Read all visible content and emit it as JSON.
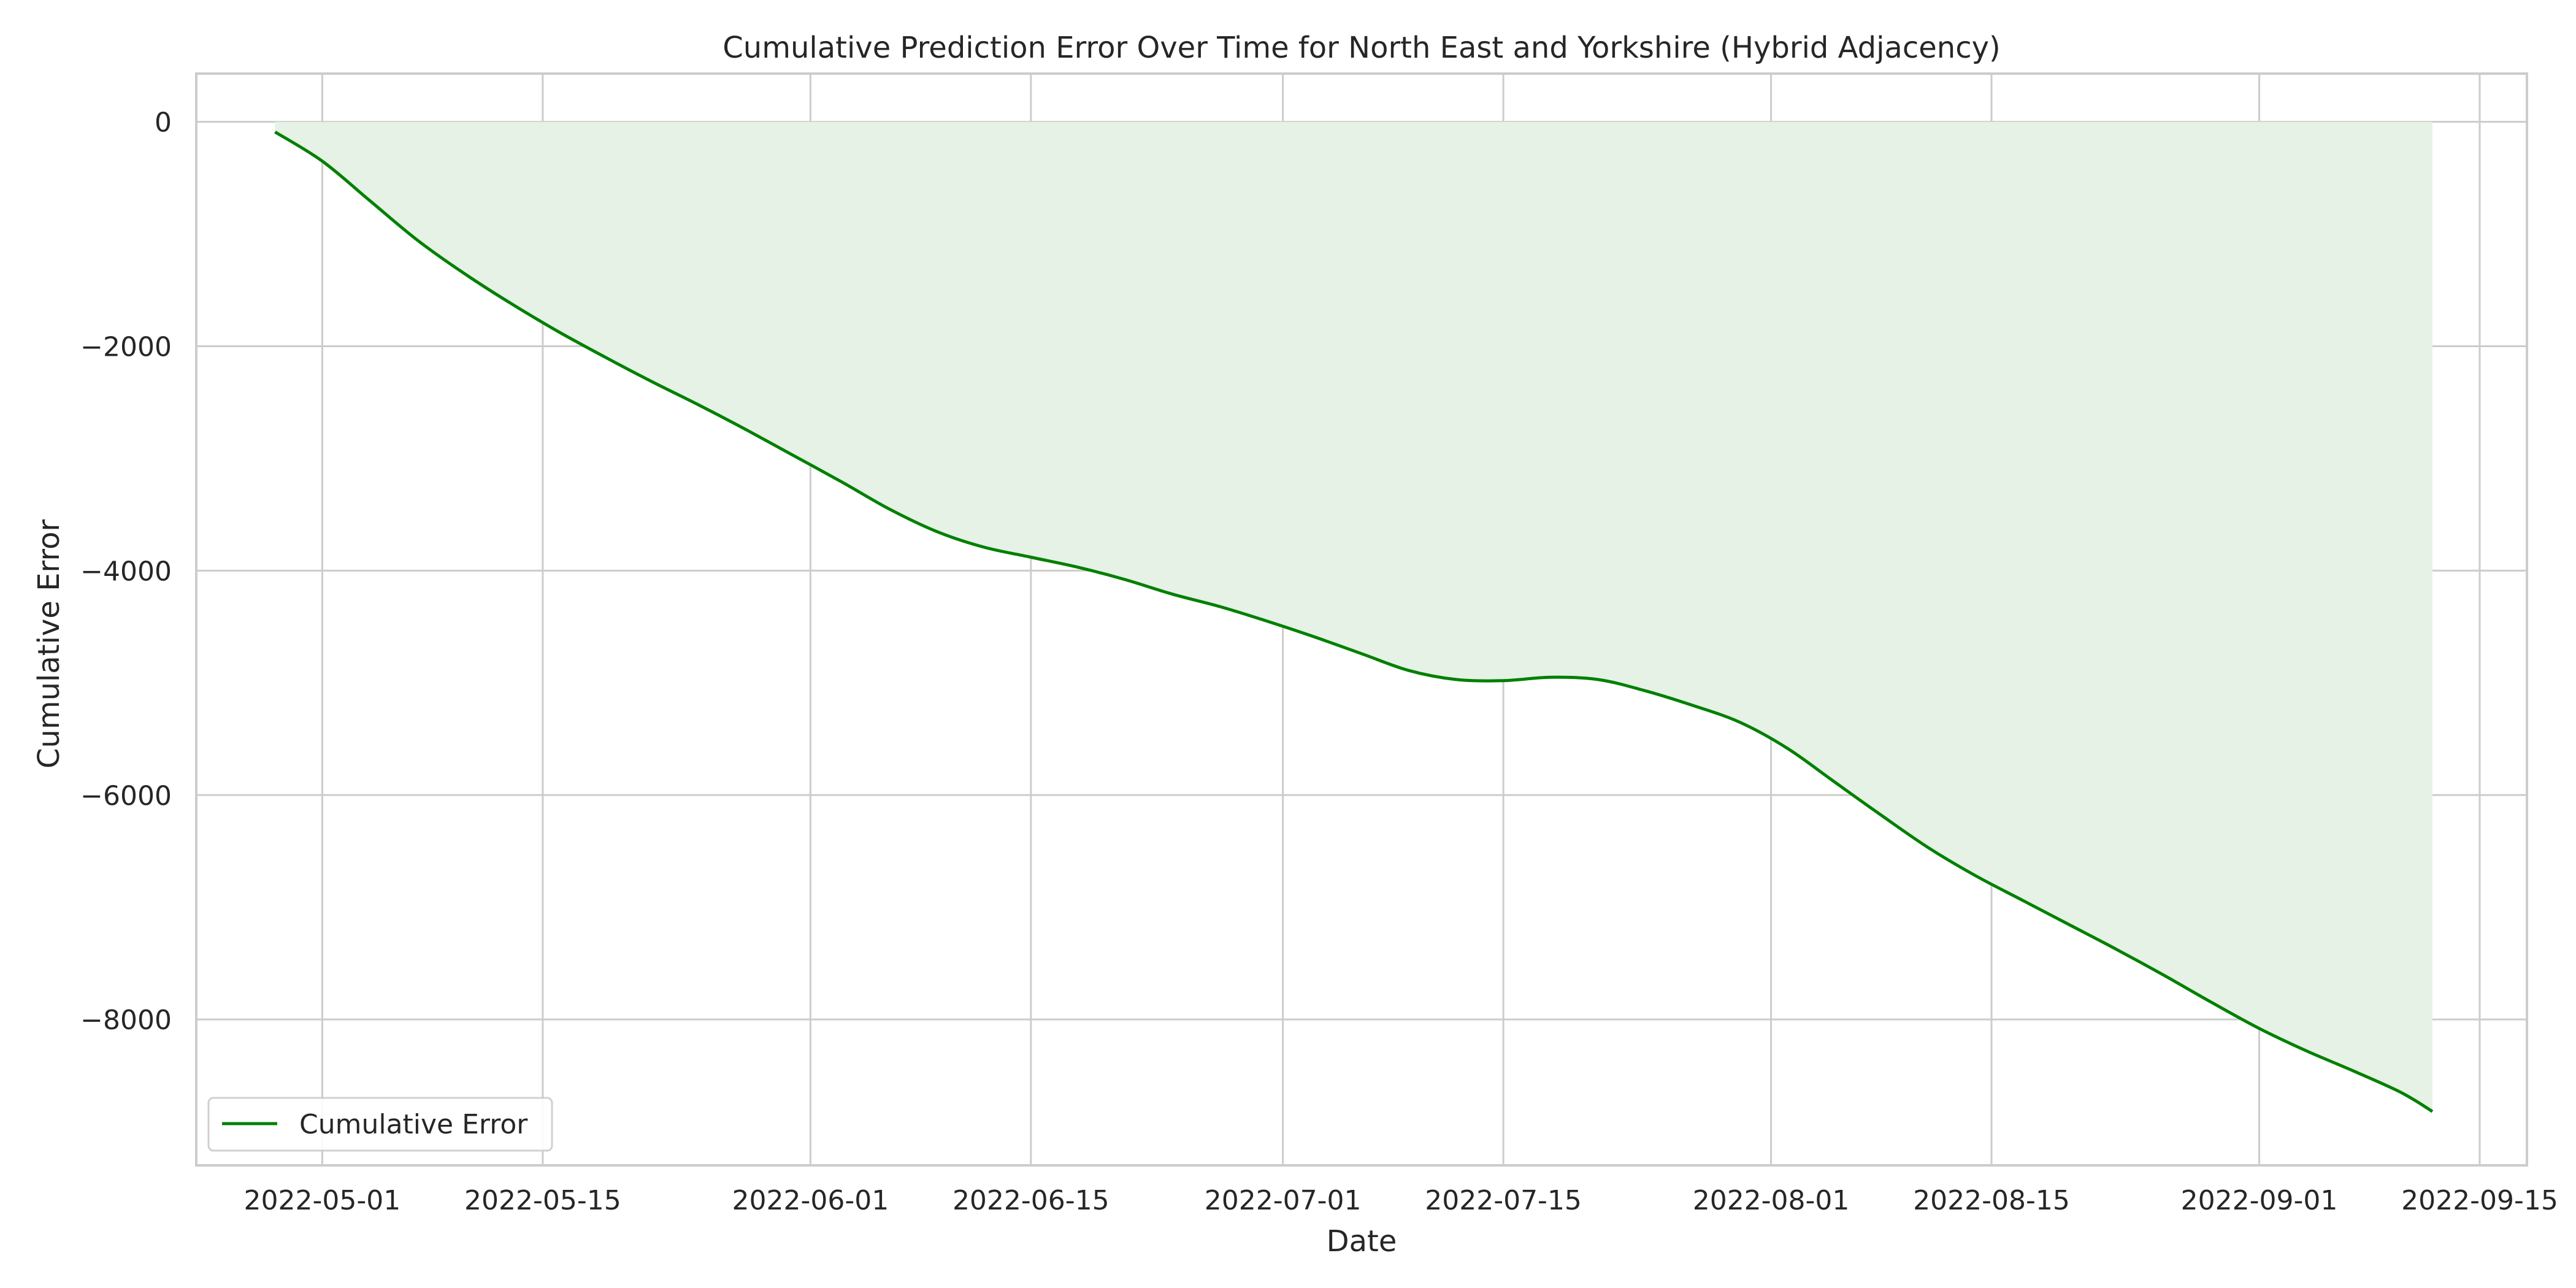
{
  "chart_data": {
    "type": "area",
    "title": "Cumulative Prediction Error Over Time for North East and Yorkshire (Hybrid Adjacency)",
    "xlabel": "Date",
    "ylabel": "Cumulative Error",
    "xlim": [
      "2022-04-23",
      "2022-09-18"
    ],
    "ylim": [
      -9300,
      430
    ],
    "x_ticks": [
      "2022-05-01",
      "2022-05-15",
      "2022-06-01",
      "2022-06-15",
      "2022-07-01",
      "2022-07-15",
      "2022-08-01",
      "2022-08-15",
      "2022-09-01",
      "2022-09-15"
    ],
    "y_ticks": [
      0,
      -2000,
      -4000,
      -6000,
      -8000
    ],
    "y_tick_labels": [
      "0",
      "−2000",
      "−4000",
      "−6000",
      "−8000"
    ],
    "grid": true,
    "legend_position": "lower-left",
    "fill_to": 0,
    "line_color": "#008000",
    "fill_color": "#e5f2e5",
    "series": [
      {
        "name": "Cumulative Error",
        "x": [
          "2022-04-28",
          "2022-05-01",
          "2022-05-04",
          "2022-05-07",
          "2022-05-10",
          "2022-05-13",
          "2022-05-16",
          "2022-05-19",
          "2022-05-22",
          "2022-05-25",
          "2022-05-28",
          "2022-05-31",
          "2022-06-03",
          "2022-06-06",
          "2022-06-09",
          "2022-06-12",
          "2022-06-15",
          "2022-06-18",
          "2022-06-21",
          "2022-06-24",
          "2022-06-27",
          "2022-06-30",
          "2022-07-03",
          "2022-07-06",
          "2022-07-09",
          "2022-07-12",
          "2022-07-15",
          "2022-07-18",
          "2022-07-21",
          "2022-07-24",
          "2022-07-27",
          "2022-07-30",
          "2022-08-02",
          "2022-08-05",
          "2022-08-08",
          "2022-08-11",
          "2022-08-14",
          "2022-08-17",
          "2022-08-20",
          "2022-08-23",
          "2022-08-26",
          "2022-08-29",
          "2022-09-01",
          "2022-09-04",
          "2022-09-07",
          "2022-09-10",
          "2022-09-12"
        ],
        "values": [
          -90,
          -350,
          -700,
          -1050,
          -1350,
          -1620,
          -1870,
          -2100,
          -2320,
          -2530,
          -2750,
          -2980,
          -3210,
          -3450,
          -3650,
          -3790,
          -3880,
          -3970,
          -4080,
          -4210,
          -4320,
          -4450,
          -4590,
          -4740,
          -4890,
          -4970,
          -4980,
          -4950,
          -4970,
          -5070,
          -5200,
          -5350,
          -5580,
          -5880,
          -6180,
          -6470,
          -6720,
          -6940,
          -7160,
          -7380,
          -7610,
          -7850,
          -8080,
          -8280,
          -8460,
          -8650,
          -8820
        ]
      }
    ]
  }
}
